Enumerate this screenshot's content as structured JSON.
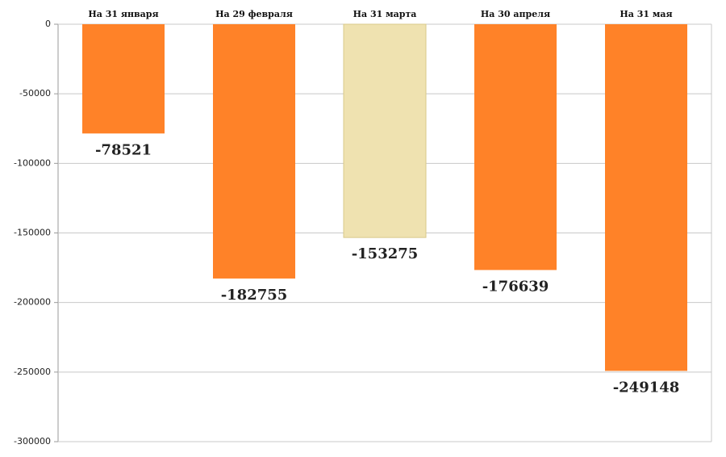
{
  "chart_data": {
    "type": "bar",
    "categories": [
      "На 31 января",
      "На 29 февраля",
      "На 31 марта",
      "На 30 апреля",
      "На 31 мая"
    ],
    "values": [
      -78521,
      -182755,
      -153275,
      -176639,
      -249148
    ],
    "colors": [
      "#ff8228",
      "#ff8228",
      "#efe2b0",
      "#ff8228",
      "#ff8228"
    ],
    "ylim": [
      -300000,
      0
    ],
    "yticks": [
      0,
      -50000,
      -100000,
      -150000,
      -200000,
      -250000,
      -300000
    ],
    "grid": true
  }
}
